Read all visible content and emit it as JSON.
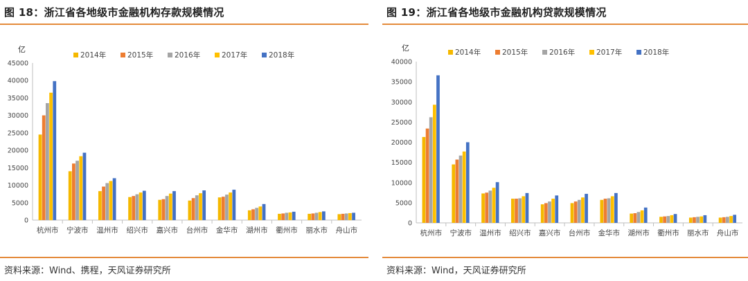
{
  "colors": {
    "y2014": "#f5b800",
    "y2015": "#ed7d31",
    "y2016": "#a5a5a5",
    "y2017": "#ffc000",
    "y2018": "#4472c4",
    "accent": "#e48a3a"
  },
  "panels": [
    {
      "title": "图 18：浙江省各地级市金融机构存款规模情况",
      "source": "资料来源：Wind、携程，天风证券研究所"
    },
    {
      "title": "图 19：浙江省各地级市金融机构贷款规模情况",
      "source": "资料来源：Wind，天风证券研究所"
    }
  ],
  "chart_data": [
    {
      "type": "bar",
      "ylabel": "亿",
      "ylim": [
        0,
        45000
      ],
      "yticks": [
        0,
        5000,
        10000,
        15000,
        20000,
        25000,
        30000,
        35000,
        40000,
        45000
      ],
      "legend_position": "top",
      "categories": [
        "杭州市",
        "宁波市",
        "温州市",
        "绍兴市",
        "嘉兴市",
        "台州市",
        "金华市",
        "湖州市",
        "衢州市",
        "丽水市",
        "舟山市"
      ],
      "series": [
        {
          "name": "2014年",
          "values": [
            24500,
            14000,
            8300,
            6600,
            5800,
            5600,
            6500,
            2800,
            1800,
            1800,
            1700
          ]
        },
        {
          "name": "2015年",
          "values": [
            30000,
            16200,
            9600,
            6900,
            6000,
            6300,
            6700,
            3100,
            1900,
            1900,
            1800
          ]
        },
        {
          "name": "2016年",
          "values": [
            33500,
            17000,
            10600,
            7400,
            6900,
            7100,
            7300,
            3500,
            2100,
            2100,
            1900
          ]
        },
        {
          "name": "2017年",
          "values": [
            36500,
            18300,
            11200,
            7900,
            7600,
            7700,
            7900,
            3900,
            2200,
            2300,
            2000
          ]
        },
        {
          "name": "2018年",
          "values": [
            39800,
            19300,
            12000,
            8400,
            8300,
            8500,
            8700,
            4600,
            2400,
            2500,
            2100
          ]
        }
      ]
    },
    {
      "type": "bar",
      "ylabel": "亿",
      "ylim": [
        0,
        40000
      ],
      "yticks": [
        0,
        5000,
        10000,
        15000,
        20000,
        25000,
        30000,
        35000,
        40000
      ],
      "legend_position": "top",
      "categories": [
        "杭州市",
        "宁波市",
        "温州市",
        "绍兴市",
        "嘉兴市",
        "台州市",
        "金华市",
        "湖州市",
        "衢州市",
        "丽水市",
        "舟山市"
      ],
      "series": [
        {
          "name": "2014年",
          "values": [
            21300,
            14500,
            7300,
            6000,
            4600,
            4900,
            5700,
            2300,
            1500,
            1300,
            1300
          ]
        },
        {
          "name": "2015年",
          "values": [
            23400,
            15700,
            7500,
            6000,
            4900,
            5300,
            6000,
            2400,
            1600,
            1400,
            1400
          ]
        },
        {
          "name": "2016年",
          "values": [
            26200,
            16700,
            8000,
            6100,
            5300,
            5700,
            6100,
            2700,
            1700,
            1500,
            1500
          ]
        },
        {
          "name": "2017年",
          "values": [
            29300,
            17700,
            8700,
            6600,
            6000,
            6300,
            6600,
            3100,
            1900,
            1600,
            1700
          ]
        },
        {
          "name": "2018年",
          "values": [
            36600,
            20000,
            10100,
            7400,
            6800,
            7200,
            7400,
            3800,
            2200,
            1900,
            2000
          ]
        }
      ]
    }
  ]
}
